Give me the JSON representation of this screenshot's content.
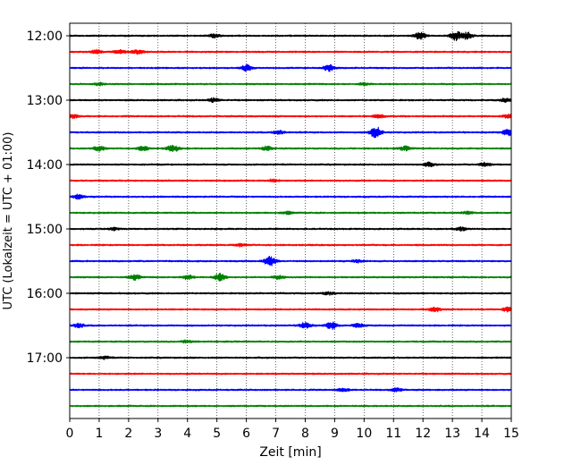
{
  "chart_data": {
    "type": "line",
    "title": "",
    "xlabel": "Zeit  [min]",
    "ylabel": "UTC (Lokalzeit = UTC + 01:00)",
    "xlim": [
      0,
      15
    ],
    "x_ticks": [
      "0",
      "1",
      "2",
      "3",
      "4",
      "5",
      "6",
      "7",
      "8",
      "9",
      "10",
      "11",
      "12",
      "13",
      "14",
      "15"
    ],
    "y_ticks": [
      "12:00",
      "13:00",
      "14:00",
      "15:00",
      "16:00",
      "17:00"
    ],
    "grid": "vertical dotted lines at each minute",
    "trace_interval_minutes": 15,
    "trace_colors": [
      "#000000",
      "#ff0000",
      "#0000ff",
      "#008000"
    ],
    "traces": [
      {
        "start": "12:00",
        "color": "#000000",
        "events": [
          {
            "x": 11.9,
            "amp": 0.55
          },
          {
            "x": 13.1,
            "amp": 0.7
          },
          {
            "x": 13.5,
            "amp": 0.5
          },
          {
            "x": 4.9,
            "amp": 0.25
          }
        ]
      },
      {
        "start": "12:15",
        "color": "#ff0000",
        "events": [
          {
            "x": 0.9,
            "amp": 0.3
          },
          {
            "x": 1.7,
            "amp": 0.35
          },
          {
            "x": 2.3,
            "amp": 0.3
          }
        ]
      },
      {
        "start": "12:30",
        "color": "#0000ff",
        "events": [
          {
            "x": 6.0,
            "amp": 0.5
          },
          {
            "x": 8.8,
            "amp": 0.5
          }
        ]
      },
      {
        "start": "12:45",
        "color": "#008000",
        "events": [
          {
            "x": 1.0,
            "amp": 0.2
          },
          {
            "x": 10.0,
            "amp": 0.2
          }
        ]
      },
      {
        "start": "13:00",
        "color": "#000000",
        "events": [
          {
            "x": 4.9,
            "amp": 0.3
          },
          {
            "x": 14.8,
            "amp": 0.25
          }
        ]
      },
      {
        "start": "13:15",
        "color": "#ff0000",
        "events": [
          {
            "x": 0.1,
            "amp": 0.3
          },
          {
            "x": 10.5,
            "amp": 0.25
          },
          {
            "x": 14.9,
            "amp": 0.3
          }
        ]
      },
      {
        "start": "13:30",
        "color": "#0000ff",
        "events": [
          {
            "x": 7.1,
            "amp": 0.3
          },
          {
            "x": 10.4,
            "amp": 0.9
          },
          {
            "x": 14.9,
            "amp": 0.55
          }
        ]
      },
      {
        "start": "13:45",
        "color": "#008000",
        "events": [
          {
            "x": 1.0,
            "amp": 0.35
          },
          {
            "x": 2.5,
            "amp": 0.35
          },
          {
            "x": 3.5,
            "amp": 0.6
          },
          {
            "x": 6.7,
            "amp": 0.3
          },
          {
            "x": 11.4,
            "amp": 0.3
          }
        ]
      },
      {
        "start": "14:00",
        "color": "#000000",
        "events": [
          {
            "x": 12.2,
            "amp": 0.3
          },
          {
            "x": 14.1,
            "amp": 0.3
          }
        ]
      },
      {
        "start": "14:15",
        "color": "#ff0000",
        "events": [
          {
            "x": 6.9,
            "amp": 0.2
          }
        ]
      },
      {
        "start": "14:30",
        "color": "#0000ff",
        "events": [
          {
            "x": 0.3,
            "amp": 0.3
          }
        ]
      },
      {
        "start": "14:45",
        "color": "#008000",
        "events": [
          {
            "x": 7.4,
            "amp": 0.2
          },
          {
            "x": 13.5,
            "amp": 0.2
          }
        ]
      },
      {
        "start": "15:00",
        "color": "#000000",
        "events": [
          {
            "x": 1.5,
            "amp": 0.2
          },
          {
            "x": 13.3,
            "amp": 0.25
          }
        ]
      },
      {
        "start": "15:15",
        "color": "#ff0000",
        "events": [
          {
            "x": 5.8,
            "amp": 0.2
          }
        ]
      },
      {
        "start": "15:30",
        "color": "#0000ff",
        "events": [
          {
            "x": 6.8,
            "amp": 0.75
          },
          {
            "x": 9.8,
            "amp": 0.2
          }
        ]
      },
      {
        "start": "15:45",
        "color": "#008000",
        "events": [
          {
            "x": 2.2,
            "amp": 0.4
          },
          {
            "x": 4.0,
            "amp": 0.35
          },
          {
            "x": 5.1,
            "amp": 0.55
          },
          {
            "x": 7.1,
            "amp": 0.25
          }
        ]
      },
      {
        "start": "16:00",
        "color": "#000000",
        "events": [
          {
            "x": 8.8,
            "amp": 0.2
          }
        ]
      },
      {
        "start": "16:15",
        "color": "#ff0000",
        "events": [
          {
            "x": 12.4,
            "amp": 0.35
          },
          {
            "x": 14.9,
            "amp": 0.35
          }
        ]
      },
      {
        "start": "16:30",
        "color": "#0000ff",
        "events": [
          {
            "x": 0.3,
            "amp": 0.3
          },
          {
            "x": 8.0,
            "amp": 0.45
          },
          {
            "x": 8.9,
            "amp": 0.55
          },
          {
            "x": 9.8,
            "amp": 0.3
          }
        ]
      },
      {
        "start": "16:45",
        "color": "#008000",
        "events": [
          {
            "x": 4.0,
            "amp": 0.2
          }
        ]
      },
      {
        "start": "17:00",
        "color": "#000000",
        "events": [
          {
            "x": 1.2,
            "amp": 0.2
          }
        ]
      },
      {
        "start": "17:15",
        "color": "#ff0000",
        "events": []
      },
      {
        "start": "17:30",
        "color": "#0000ff",
        "events": [
          {
            "x": 9.3,
            "amp": 0.25
          },
          {
            "x": 11.1,
            "amp": 0.3
          }
        ]
      },
      {
        "start": "17:45",
        "color": "#008000",
        "events": []
      }
    ]
  }
}
